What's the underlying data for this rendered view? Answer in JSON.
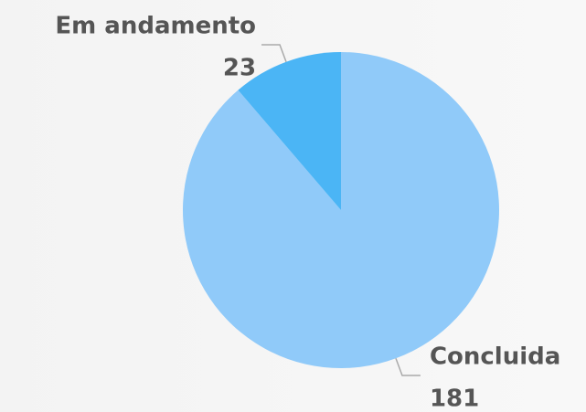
{
  "chart_data": {
    "type": "pie",
    "categories": [
      "Concluida",
      "Em andamento"
    ],
    "values": [
      181,
      23
    ],
    "colors": [
      "#90caf9",
      "#4bb5f5"
    ]
  }
}
